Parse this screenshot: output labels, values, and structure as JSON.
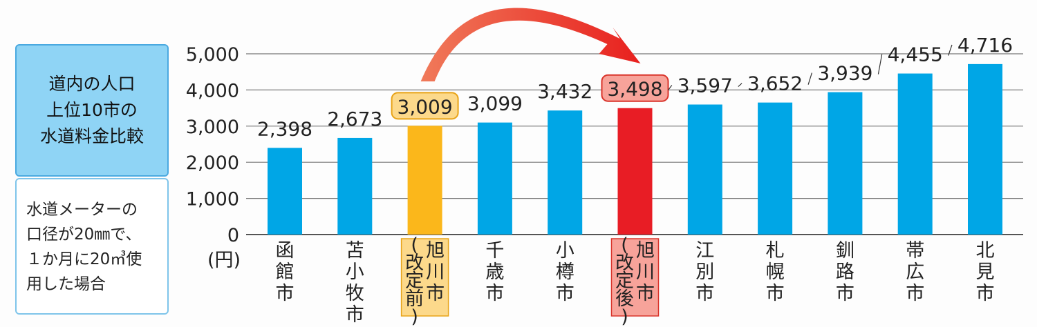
{
  "info": {
    "title_lines": [
      "道内の人口",
      "上位10市の",
      "水道料金比較"
    ],
    "note": "水道メーターの\n口径が20㎜で、\n１か月に20㎥使\n用した場合"
  },
  "colors": {
    "bar": "#00a6e6",
    "before": "#fbb71b",
    "after": "#e81d25",
    "before_label_bg": "#fcd98b",
    "after_label_bg": "#f7a39a",
    "arrow": "#e53a2a"
  },
  "chart_data": {
    "type": "bar",
    "unit_label": "(円)",
    "ylim": [
      0,
      5000
    ],
    "yticks": [
      "0",
      "1,000",
      "2,000",
      "3,000",
      "4,000",
      "5,000"
    ],
    "grid": true,
    "categories": [
      "函館市",
      "苫小牧市",
      "旭川市（改定前）",
      "千歳市",
      "小樽市",
      "旭川市（改定後）",
      "江別市",
      "札幌市",
      "釧路市",
      "帯広市",
      "北見市"
    ],
    "values": [
      2398,
      2673,
      3009,
      3099,
      3432,
      3498,
      3597,
      3652,
      3939,
      4455,
      4716
    ],
    "value_labels": [
      "2,398",
      "2,673",
      "3,009",
      "3,099",
      "3,432",
      "3,498",
      "3,597",
      "3,652",
      "3,939",
      "4,455",
      "4,716"
    ],
    "highlight": {
      "before_index": 2,
      "after_index": 5
    }
  }
}
